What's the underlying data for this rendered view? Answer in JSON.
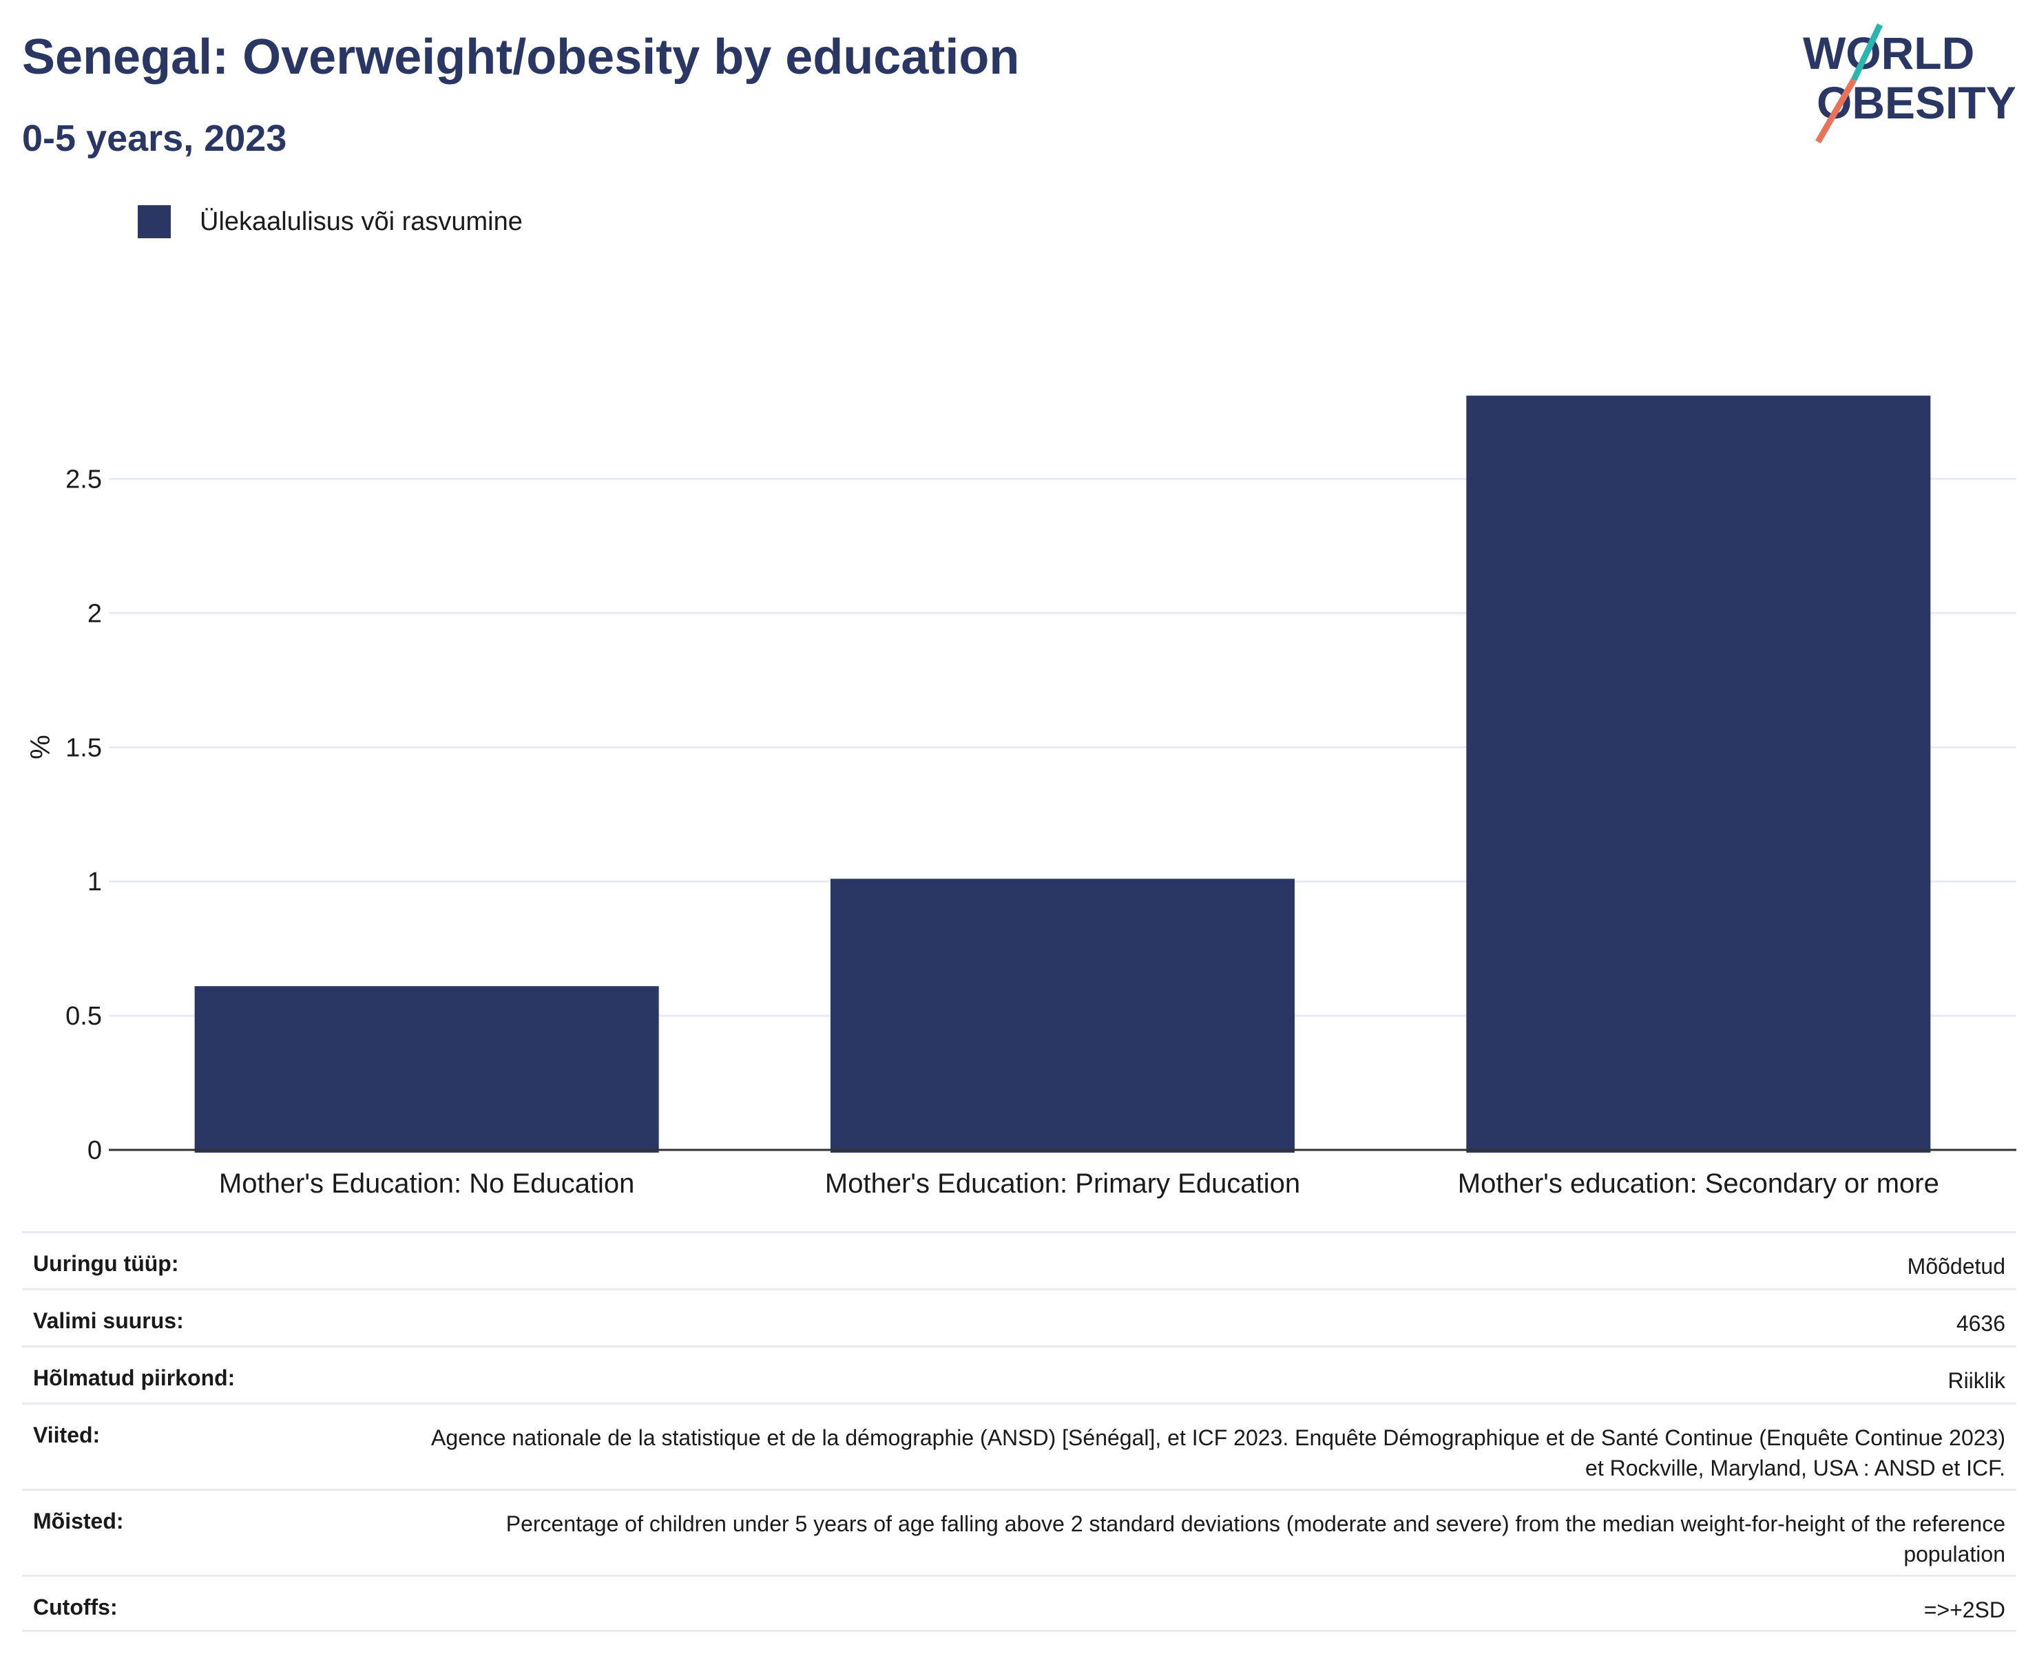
{
  "header": {
    "title": "Senegal: Overweight/obesity by education",
    "subtitle": "0-5 years, 2023"
  },
  "logo": {
    "line1": "WORLD",
    "line2": "OBESITY",
    "accent_teal": "#2bb5b0",
    "accent_coral": "#e8735a"
  },
  "colors": {
    "bar": "#2a3663",
    "title": "#2a3663",
    "grid": "#e8ebf2",
    "axis": "#333333"
  },
  "chart_data": {
    "type": "bar",
    "categories": [
      "Mother's Education: No Education",
      "Mother's Education: Primary Education",
      "Mother's education: Secondary or more"
    ],
    "series": [
      {
        "name": "Ülekaalulisus või rasvumine",
        "values": [
          0.61,
          1.01,
          2.81
        ]
      }
    ],
    "ylabel": "%",
    "ylim": [
      0,
      2.95
    ],
    "yticks": [
      0,
      0.5,
      1,
      1.5,
      2,
      2.5
    ],
    "ytick_labels": [
      "0",
      "0.5",
      "1",
      "1.5",
      "2",
      "2.5"
    ],
    "grid": true,
    "legend": "top-left"
  },
  "meta": [
    {
      "key": "Uuringu tüüp:",
      "value": "Mõõdetud"
    },
    {
      "key": "Valimi suurus:",
      "value": "4636"
    },
    {
      "key": "Hõlmatud piirkond:",
      "value": "Riiklik"
    },
    {
      "key": "Viited:",
      "value": "Agence nationale de la statistique et de la démographie (ANSD) [Sénégal], et ICF 2023. Enquête Démographique et de Santé Continue (Enquête Continue 2023) et Rockville, Maryland, USA : ANSD et ICF."
    },
    {
      "key": "Mõisted:",
      "value": "Percentage of children under 5 years of age falling above 2 standard deviations (moderate and severe) from the median weight-for-height of the reference population"
    },
    {
      "key": "Cutoffs:",
      "value": "=>+2SD"
    }
  ]
}
